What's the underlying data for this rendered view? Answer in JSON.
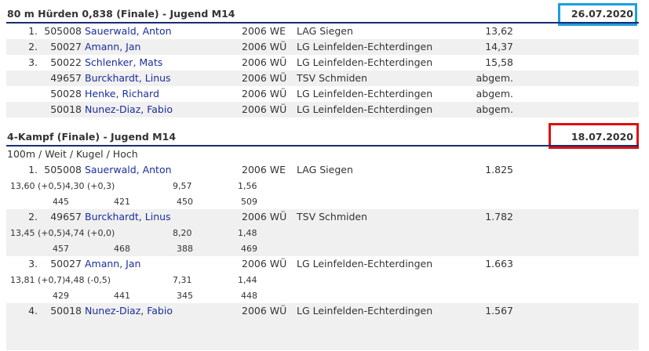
{
  "section1": {
    "title": "80 m Hürden 0,838 (Finale) - Jugend M14",
    "date": "26.07.2020",
    "date_frame_color": "#1aa0e0",
    "rows": [
      {
        "place": "1.",
        "bib": "505008",
        "name": "Sauerwald, Anton",
        "year": "2006 WE",
        "club": "LAG Siegen",
        "result": "13,62"
      },
      {
        "place": "2.",
        "bib": "50027",
        "name": "Amann, Jan",
        "year": "2006 WÜ",
        "club": "LG Leinfelden-Echterdingen",
        "result": "14,37"
      },
      {
        "place": "3.",
        "bib": "50022",
        "name": "Schlenker, Mats",
        "year": "2006 WÜ",
        "club": "LG Leinfelden-Echterdingen",
        "result": "15,58"
      },
      {
        "place": "",
        "bib": "49657",
        "name": "Burckhardt, Linus",
        "year": "2006 WÜ",
        "club": "TSV Schmiden",
        "result": "abgem."
      },
      {
        "place": "",
        "bib": "50028",
        "name": "Henke, Richard",
        "year": "2006 WÜ",
        "club": "LG Leinfelden-Echterdingen",
        "result": "abgem."
      },
      {
        "place": "",
        "bib": "50018",
        "name": "Nunez-Diaz, Fabio",
        "year": "2006 WÜ",
        "club": "LG Leinfelden-Echterdingen",
        "result": "abgem."
      }
    ]
  },
  "section2": {
    "title": "4-Kampf (Finale) - Jugend M14",
    "date": "18.07.2020",
    "date_frame_color": "#e01010",
    "disciplines": "100m / Weit / Kugel / Hoch",
    "rows": [
      {
        "place": "1.",
        "bib": "505008",
        "name": "Sauerwald, Anton",
        "year": "2006 WE",
        "club": "LAG Siegen",
        "result": "1.825",
        "perfs": [
          "13,60 (+0,5)",
          "4,30 (+0,3)",
          "9,57",
          "1,56"
        ],
        "points": [
          "445",
          "421",
          "450",
          "509"
        ]
      },
      {
        "place": "2.",
        "bib": "49657",
        "name": "Burckhardt, Linus",
        "year": "2006 WÜ",
        "club": "TSV Schmiden",
        "result": "1.782",
        "perfs": [
          "13,45 (+0,5)",
          "4,74 (+0,0)",
          "8,20",
          "1,48"
        ],
        "points": [
          "457",
          "468",
          "388",
          "469"
        ]
      },
      {
        "place": "3.",
        "bib": "50027",
        "name": "Amann, Jan",
        "year": "2006 WÜ",
        "club": "LG Leinfelden-Echterdingen",
        "result": "1.663",
        "perfs": [
          "13,81 (+0,7)",
          "4,48 (-0,5)",
          "7,31",
          "1,44"
        ],
        "points": [
          "429",
          "441",
          "345",
          "448"
        ]
      },
      {
        "place": "4.",
        "bib": "50018",
        "name": "Nunez-Diaz, Fabio",
        "year": "2006 WÜ",
        "club": "LG Leinfelden-Echterdingen",
        "result": "1.567",
        "perfs": [],
        "points": []
      }
    ]
  }
}
